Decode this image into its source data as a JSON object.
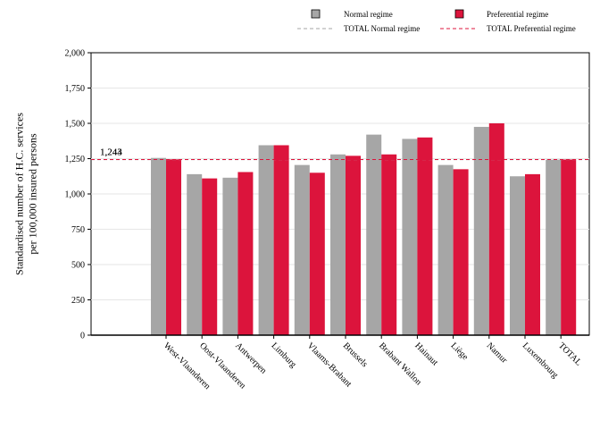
{
  "chart_data": {
    "type": "bar",
    "ylabel_lines": [
      "Standardised number of H.C. services",
      "per 100,000 insured persons"
    ],
    "ylim": [
      0,
      2000
    ],
    "yticks": [
      0,
      250,
      500,
      750,
      1000,
      1250,
      1500,
      1750,
      2000
    ],
    "ytick_labels": [
      "0",
      "250",
      "500",
      "750",
      "1,000",
      "1,250",
      "1,500",
      "1,750",
      "2,000"
    ],
    "categories": [
      "West-Vlaanderen",
      "Oost-Vlaanderen",
      "Antwerpen",
      "Limburg",
      "Vlaams-Brabant",
      "Brussels",
      "Brabant Wallon",
      "Hainaut",
      "Liège",
      "Namur",
      "Luxembourg",
      "TOTAL"
    ],
    "series": [
      {
        "name": "Normal regime",
        "color": "#a6a6a6",
        "values": [
          1255,
          1140,
          1115,
          1345,
          1205,
          1280,
          1420,
          1390,
          1205,
          1475,
          1125,
          1243
        ]
      },
      {
        "name": "Preferential regime",
        "color": "#dc143c",
        "values": [
          1245,
          1110,
          1155,
          1345,
          1150,
          1270,
          1280,
          1400,
          1175,
          1500,
          1140,
          1244
        ]
      }
    ],
    "reference_lines": [
      {
        "name": "TOTAL Normal regime",
        "value": 1243,
        "color": "#a6a6a6"
      },
      {
        "name": "TOTAL Preferential regime",
        "value": 1244,
        "color": "#dc143c"
      }
    ],
    "reference_labels": [
      "1,243",
      "1,244"
    ],
    "legend_position": "top-right",
    "grid": true
  }
}
